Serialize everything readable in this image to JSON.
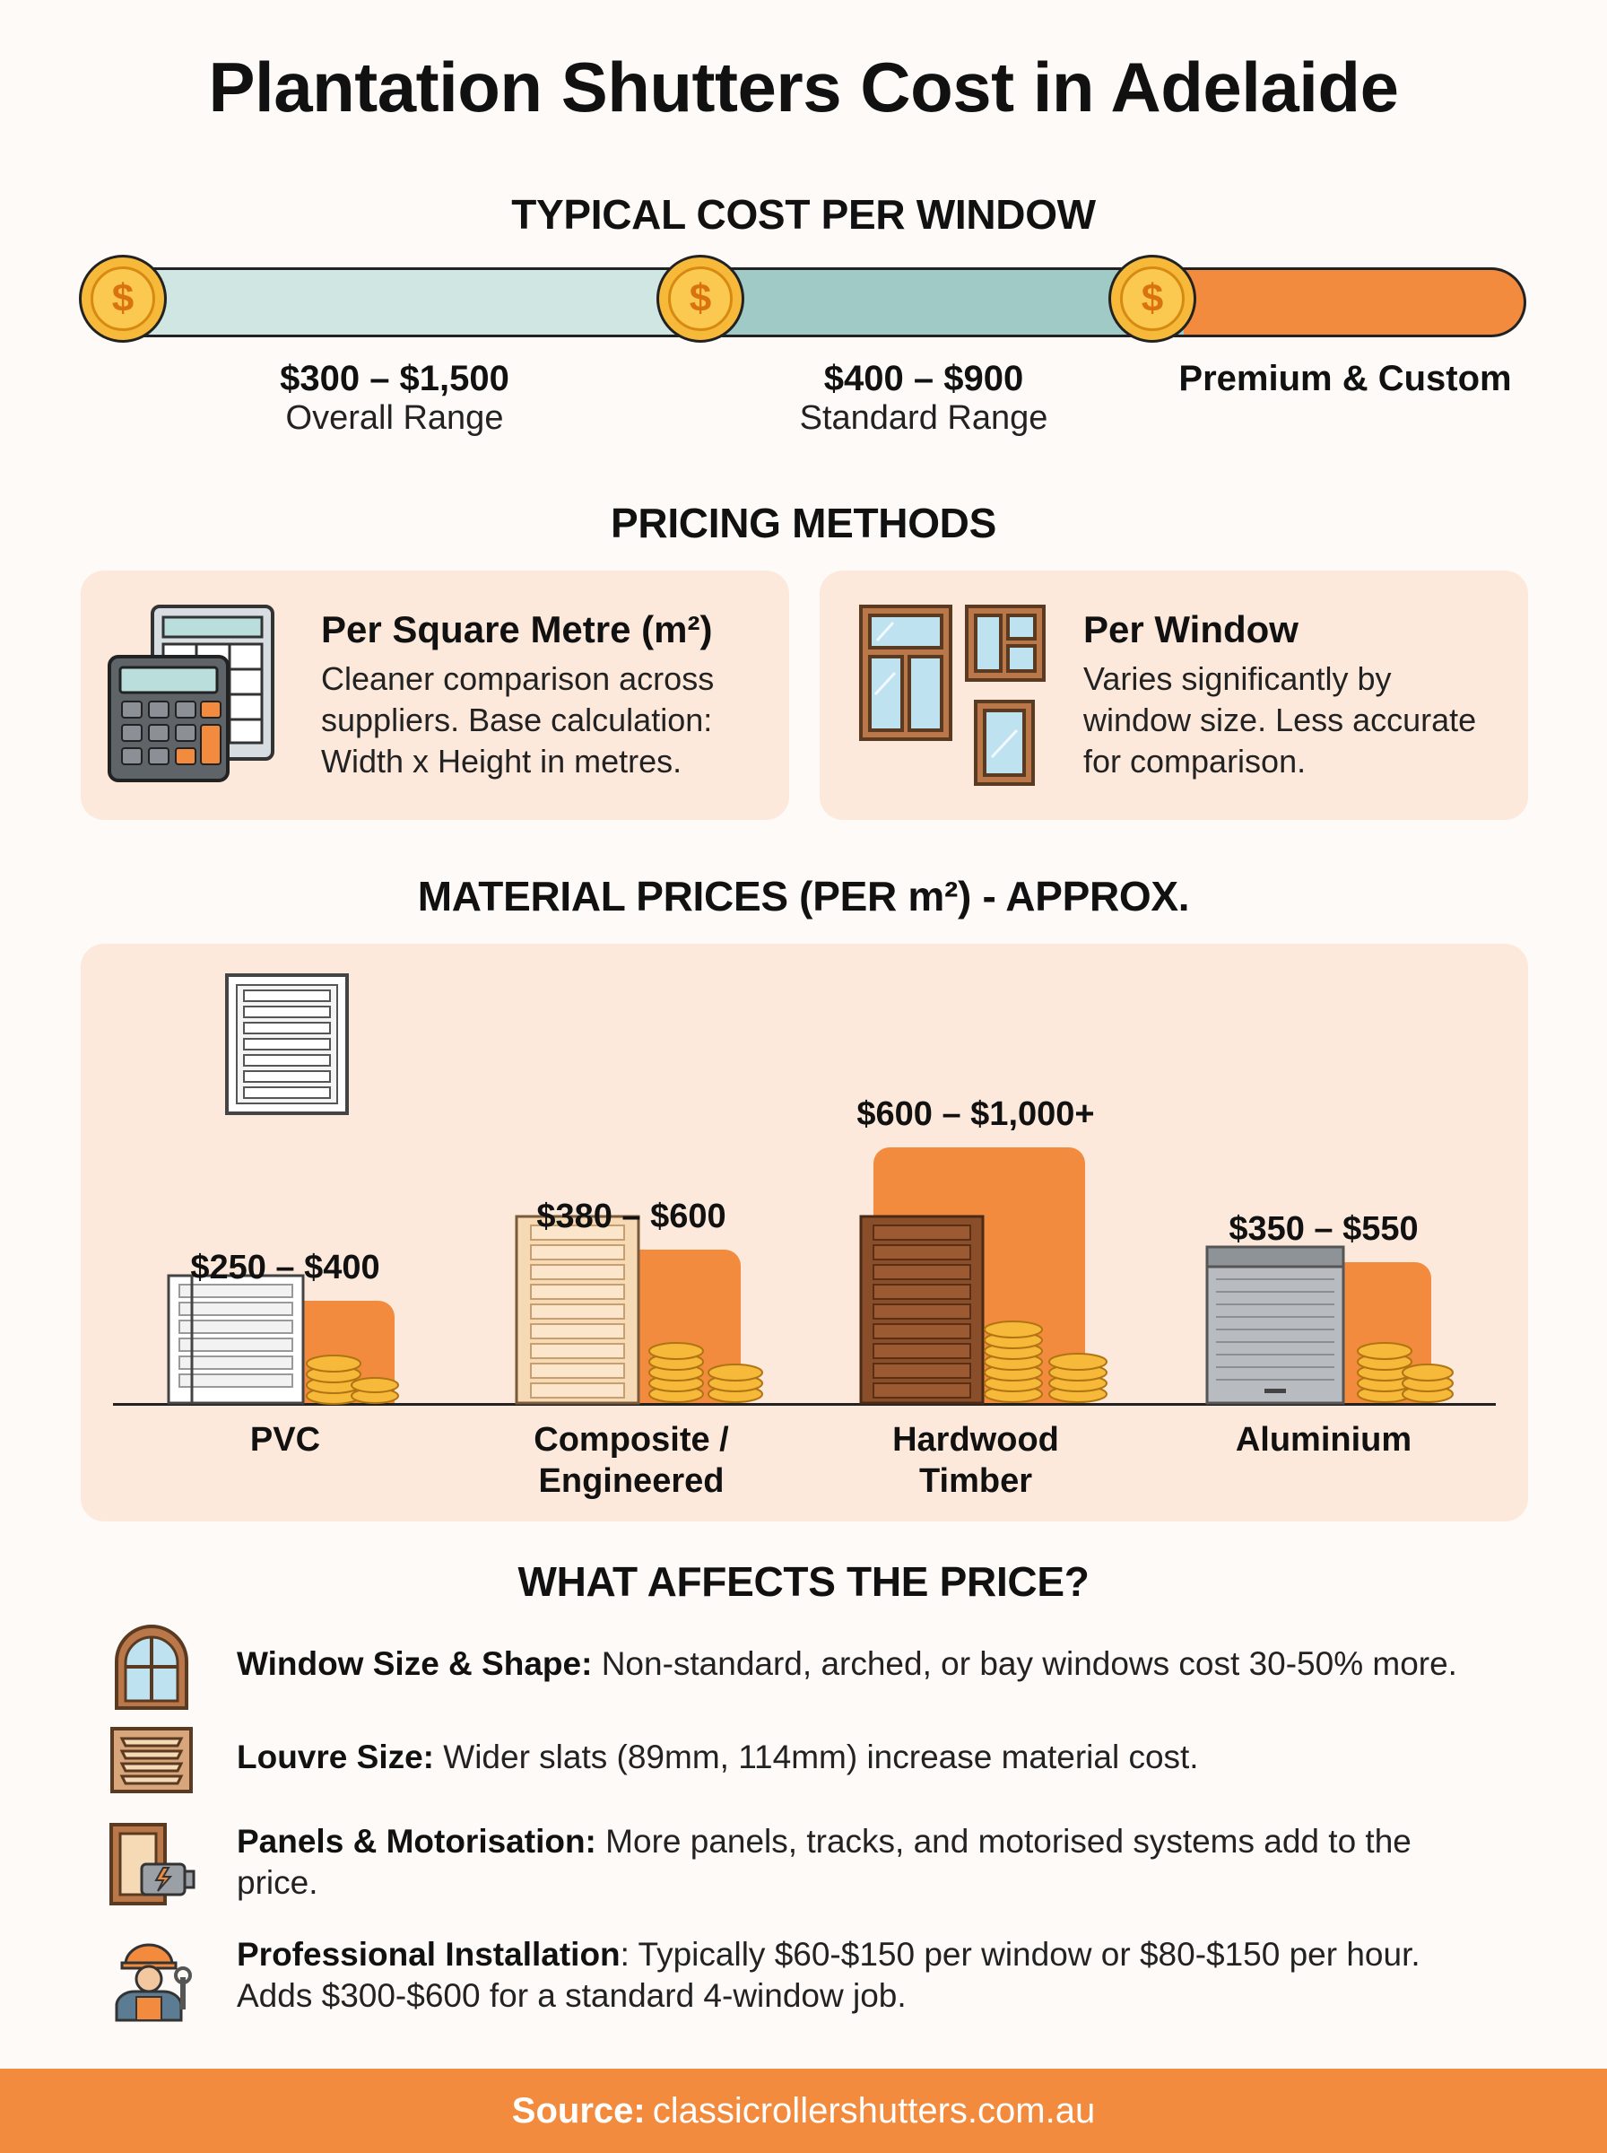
{
  "title": "Plantation Shutters Cost in Adelaide",
  "cost_per_window": {
    "heading": "TYPICAL COST PER WINDOW",
    "ranges": [
      {
        "value": "$300 – $1,500",
        "label": "Overall Range"
      },
      {
        "value": "$400 – $900",
        "label": "Standard Range"
      },
      {
        "value": "Premium & Custom",
        "label": ""
      }
    ],
    "coin_symbol": "$"
  },
  "pricing_methods": {
    "heading": "PRICING METHODS",
    "items": [
      {
        "title": "Per Square Metre (m²)",
        "lines": [
          "Cleaner comparison across",
          "suppliers. Base calculation:",
          "Width x Height in metres."
        ],
        "icon": "calculator-icon"
      },
      {
        "title": "Per Window",
        "lines": [
          "Varies significantly by",
          "window size. Less accurate",
          "for comparison."
        ],
        "icon": "windows-icon"
      }
    ]
  },
  "materials": {
    "heading": "MATERIAL PRICES (PER m²) - APPROX.",
    "items": [
      {
        "name_lines": [
          "PVC"
        ],
        "price": "$250 – $400",
        "low": 250,
        "high": 400
      },
      {
        "name_lines": [
          "Composite /",
          "Engineered"
        ],
        "price": "$380 – $600",
        "low": 380,
        "high": 600
      },
      {
        "name_lines": [
          "Hardwood",
          "Timber"
        ],
        "price": "$600 – $1,000+",
        "low": 600,
        "high": 1000
      },
      {
        "name_lines": [
          "Aluminium"
        ],
        "price": "$350 – $550",
        "low": 350,
        "high": 550
      }
    ]
  },
  "factors": {
    "heading": "WHAT AFFECTS THE PRICE?",
    "items": [
      {
        "label": "Window Size & Shape:",
        "lines": [
          " Non-standard, arched, or bay windows cost 30-50% more."
        ],
        "icon": "arched-window-icon"
      },
      {
        "label": "Louvre Size:",
        "lines": [
          " Wider slats (89mm, 114mm) increase material cost."
        ],
        "icon": "louvre-icon"
      },
      {
        "label": "Panels & Motorisation:",
        "lines": [
          " More panels, tracks, and motorised systems add to the",
          "price."
        ],
        "icon": "motor-panel-icon"
      },
      {
        "label": "Professional Installation",
        "lines": [
          ": Typically $60-$150 per window or $80-$150 per hour.",
          "Adds $300-$600 for a standard 4-window job."
        ],
        "icon": "installer-icon"
      }
    ]
  },
  "footer": {
    "label": "Source:",
    "text": "classicrollershutters.com.au"
  },
  "colors": {
    "accent": "#f28b3d",
    "teal_light": "#cfe6e3",
    "teal": "#9fcac5",
    "card": "#fce9dc",
    "coin": "#f7b93a"
  }
}
